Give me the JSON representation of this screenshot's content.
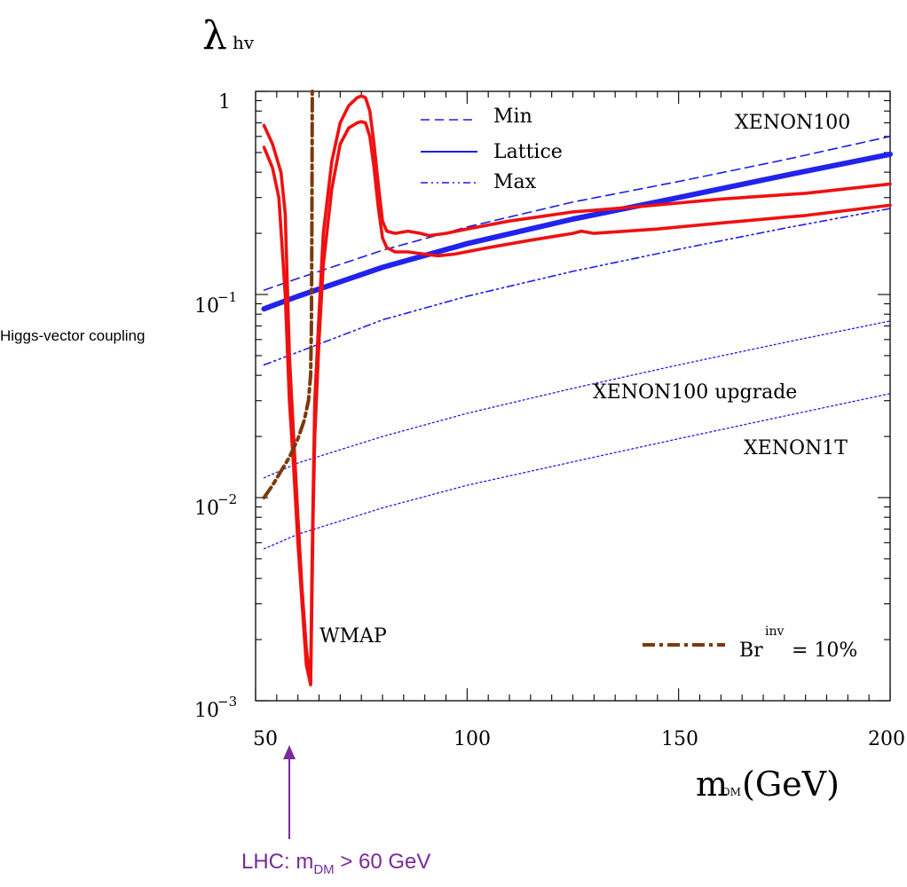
{
  "chart_data": {
    "type": "line",
    "title": "",
    "ylabel_symbol": "λ",
    "ylabel_subscript": "hv",
    "ylabel_side": "Higgs-vector coupling",
    "xlabel_main": "m",
    "xlabel_subscript": "DM",
    "xlabel_unit": "(GeV)",
    "xlim": [
      50,
      200
    ],
    "ylim": [
      0.001,
      1
    ],
    "y_scale": "log",
    "x_ticks": [
      50,
      100,
      150,
      200
    ],
    "y_ticks": [
      {
        "value": 1,
        "base": "1",
        "exp": ""
      },
      {
        "value": 0.1,
        "base": "10",
        "exp": "−1"
      },
      {
        "value": 0.01,
        "base": "10",
        "exp": "−2"
      },
      {
        "value": 0.001,
        "base": "10",
        "exp": "−3"
      }
    ],
    "legend": {
      "placement": "top",
      "entries": [
        {
          "label": "Min",
          "series": "min"
        },
        {
          "label": "Lattice",
          "series": "lattice"
        },
        {
          "label": "Max",
          "series": "max"
        }
      ]
    },
    "br_legend": {
      "label": "Br",
      "superscript": "inv",
      "value_text": "= 10%",
      "placement": "bottom-right"
    },
    "annotations": {
      "xenon100": "XENON100",
      "xenon100_upgrade": "XENON100 upgrade",
      "xenon1t": "XENON1T",
      "wmap": "WMAP"
    },
    "lhc_note": {
      "prefix": "LHC:  m",
      "subscript": "DM",
      "suffix": " > 60 GeV"
    },
    "series": [
      {
        "id": "min",
        "style": "dashed",
        "color": "#1c1ce6",
        "points": [
          [
            52,
            0.105
          ],
          [
            60,
            0.12
          ],
          [
            80,
            0.165
          ],
          [
            100,
            0.215
          ],
          [
            125,
            0.285
          ],
          [
            150,
            0.36
          ],
          [
            175,
            0.46
          ],
          [
            200,
            0.6
          ]
        ]
      },
      {
        "id": "lattice",
        "style": "solid-thick",
        "color": "#2222ee",
        "points": [
          [
            52,
            0.085
          ],
          [
            60,
            0.098
          ],
          [
            80,
            0.136
          ],
          [
            100,
            0.178
          ],
          [
            125,
            0.235
          ],
          [
            150,
            0.3
          ],
          [
            175,
            0.385
          ],
          [
            200,
            0.49
          ]
        ]
      },
      {
        "id": "max",
        "style": "dash-dot",
        "color": "#1c1ce6",
        "points": [
          [
            52,
            0.045
          ],
          [
            60,
            0.052
          ],
          [
            80,
            0.075
          ],
          [
            100,
            0.098
          ],
          [
            125,
            0.13
          ],
          [
            150,
            0.167
          ],
          [
            175,
            0.212
          ],
          [
            200,
            0.265
          ]
        ]
      },
      {
        "id": "xenon100_upgrade",
        "style": "dotted",
        "color": "#1c1ce6",
        "points": [
          [
            52,
            0.0125
          ],
          [
            60,
            0.0148
          ],
          [
            80,
            0.02
          ],
          [
            100,
            0.026
          ],
          [
            125,
            0.0345
          ],
          [
            150,
            0.045
          ],
          [
            175,
            0.058
          ],
          [
            200,
            0.074
          ]
        ]
      },
      {
        "id": "xenon1t",
        "style": "dotted",
        "color": "#1c1ce6",
        "points": [
          [
            52,
            0.0056
          ],
          [
            60,
            0.0066
          ],
          [
            80,
            0.0089
          ],
          [
            100,
            0.0115
          ],
          [
            125,
            0.015
          ],
          [
            150,
            0.0195
          ],
          [
            175,
            0.0252
          ],
          [
            200,
            0.0325
          ]
        ]
      },
      {
        "id": "wmap_upper",
        "style": "solid",
        "color": "#ee1111",
        "points": [
          [
            52,
            0.68
          ],
          [
            54,
            0.55
          ],
          [
            56,
            0.4
          ],
          [
            57,
            0.25
          ],
          [
            58,
            0.05
          ],
          [
            59,
            0.02
          ],
          [
            60,
            0.008
          ],
          [
            61,
            0.0035
          ],
          [
            62,
            0.0018
          ],
          [
            63,
            0.0012
          ],
          [
            63.3,
            0.004
          ],
          [
            63.6,
            0.01
          ],
          [
            64,
            0.03
          ],
          [
            65,
            0.08
          ],
          [
            66,
            0.2
          ],
          [
            68,
            0.45
          ],
          [
            70,
            0.7
          ],
          [
            72,
            0.85
          ],
          [
            74,
            0.93
          ],
          [
            75,
            0.95
          ],
          [
            76,
            0.93
          ],
          [
            77,
            0.8
          ],
          [
            78,
            0.55
          ],
          [
            79,
            0.35
          ],
          [
            80,
            0.23
          ],
          [
            81,
            0.205
          ],
          [
            83,
            0.2
          ],
          [
            86,
            0.205
          ],
          [
            89,
            0.2
          ],
          [
            91,
            0.195
          ],
          [
            95,
            0.2
          ],
          [
            100,
            0.21
          ],
          [
            110,
            0.23
          ],
          [
            125,
            0.255
          ],
          [
            140,
            0.27
          ],
          [
            160,
            0.295
          ],
          [
            180,
            0.315
          ],
          [
            200,
            0.35
          ]
        ]
      },
      {
        "id": "wmap_lower",
        "style": "solid",
        "color": "#ee1111",
        "points": [
          [
            52,
            0.53
          ],
          [
            54,
            0.42
          ],
          [
            55.5,
            0.3
          ],
          [
            57,
            0.1
          ],
          [
            58,
            0.03
          ],
          [
            59,
            0.014
          ],
          [
            60,
            0.006
          ],
          [
            61,
            0.003
          ],
          [
            62,
            0.0015
          ],
          [
            63,
            0.0012
          ],
          [
            63.3,
            0.003
          ],
          [
            63.6,
            0.008
          ],
          [
            64,
            0.02
          ],
          [
            65,
            0.06
          ],
          [
            66,
            0.14
          ],
          [
            68,
            0.33
          ],
          [
            70,
            0.55
          ],
          [
            72,
            0.66
          ],
          [
            74,
            0.7
          ],
          [
            75,
            0.71
          ],
          [
            76,
            0.7
          ],
          [
            77,
            0.6
          ],
          [
            78,
            0.42
          ],
          [
            79,
            0.27
          ],
          [
            80,
            0.19
          ],
          [
            81,
            0.17
          ],
          [
            83,
            0.162
          ],
          [
            86,
            0.162
          ],
          [
            90,
            0.158
          ],
          [
            93,
            0.155
          ],
          [
            97,
            0.158
          ],
          [
            105,
            0.17
          ],
          [
            115,
            0.185
          ],
          [
            125,
            0.2
          ],
          [
            127,
            0.205
          ],
          [
            130,
            0.2
          ],
          [
            145,
            0.21
          ],
          [
            160,
            0.225
          ],
          [
            180,
            0.245
          ],
          [
            200,
            0.275
          ]
        ]
      },
      {
        "id": "br_inv",
        "style": "dash-dot-thick",
        "color": "#7a3a0c",
        "points": [
          [
            52,
            0.01
          ],
          [
            54,
            0.0115
          ],
          [
            56,
            0.0135
          ],
          [
            58,
            0.0158
          ],
          [
            60,
            0.0195
          ],
          [
            61.5,
            0.024
          ],
          [
            62.5,
            0.03
          ],
          [
            63,
            0.04
          ],
          [
            63.2,
            0.07
          ],
          [
            63.3,
            0.2
          ],
          [
            63.4,
            1
          ]
        ]
      }
    ]
  }
}
